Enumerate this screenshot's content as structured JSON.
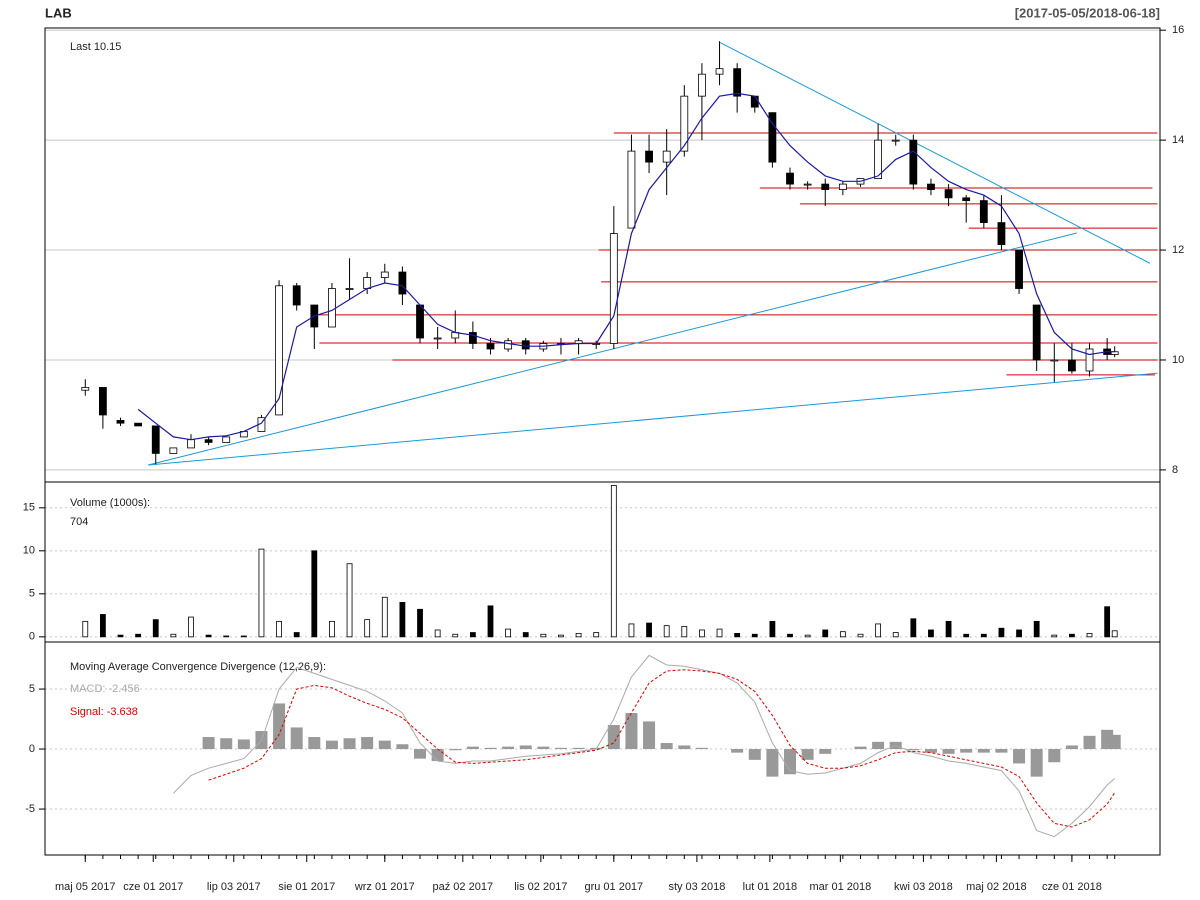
{
  "chart_data": [
    {
      "type": "candlestick",
      "title": "LAB",
      "subtitle": "[2017-05-05/2018-06-18]",
      "annotation": "Last 10.15",
      "x": [
        "2017-05-05",
        "2017-05-12",
        "2017-05-19",
        "2017-05-26",
        "2017-06-02",
        "2017-06-09",
        "2017-06-16",
        "2017-06-23",
        "2017-06-30",
        "2017-07-07",
        "2017-07-14",
        "2017-07-21",
        "2017-07-28",
        "2017-08-04",
        "2017-08-11",
        "2017-08-18",
        "2017-08-25",
        "2017-09-01",
        "2017-09-08",
        "2017-09-15",
        "2017-09-22",
        "2017-09-29",
        "2017-10-06",
        "2017-10-13",
        "2017-10-20",
        "2017-10-27",
        "2017-11-03",
        "2017-11-10",
        "2017-11-17",
        "2017-11-24",
        "2017-12-01",
        "2017-12-08",
        "2017-12-15",
        "2017-12-22",
        "2017-12-29",
        "2018-01-05",
        "2018-01-12",
        "2018-01-19",
        "2018-01-26",
        "2018-02-02",
        "2018-02-09",
        "2018-02-16",
        "2018-02-23",
        "2018-03-02",
        "2018-03-09",
        "2018-03-16",
        "2018-03-23",
        "2018-03-30",
        "2018-04-06",
        "2018-04-13",
        "2018-04-20",
        "2018-04-27",
        "2018-05-04",
        "2018-05-11",
        "2018-05-18",
        "2018-05-25",
        "2018-06-01",
        "2018-06-08",
        "2018-06-15",
        "2018-06-18"
      ],
      "open": [
        9.45,
        9.5,
        8.9,
        8.85,
        8.8,
        8.3,
        8.4,
        8.55,
        8.5,
        8.6,
        8.7,
        9.0,
        11.35,
        11.0,
        10.6,
        11.3,
        11.3,
        11.5,
        11.6,
        11.0,
        10.4,
        10.4,
        10.5,
        10.3,
        10.2,
        10.35,
        10.2,
        10.3,
        10.3,
        10.3,
        10.3,
        12.4,
        13.8,
        13.6,
        13.8,
        14.8,
        15.2,
        15.3,
        14.8,
        14.5,
        13.4,
        13.2,
        13.2,
        13.1,
        13.2,
        13.3,
        14.0,
        14.0,
        13.2,
        13.1,
        12.95,
        12.9,
        12.5,
        12.0,
        11.0,
        10.0,
        10.0,
        9.8,
        10.2,
        10.1
      ],
      "high": [
        9.65,
        9.5,
        8.95,
        8.85,
        8.8,
        8.4,
        8.65,
        8.6,
        8.6,
        8.7,
        9.0,
        11.45,
        11.4,
        11.0,
        11.4,
        11.85,
        11.6,
        11.75,
        11.7,
        11.0,
        10.6,
        10.9,
        10.7,
        10.4,
        10.4,
        10.4,
        10.35,
        10.4,
        10.4,
        10.35,
        12.8,
        14.1,
        14.1,
        14.2,
        15.0,
        15.4,
        15.8,
        15.4,
        14.8,
        14.5,
        13.5,
        13.25,
        13.3,
        13.25,
        13.3,
        14.3,
        14.1,
        14.1,
        13.3,
        13.2,
        13.0,
        13.0,
        13.0,
        12.0,
        11.0,
        10.3,
        10.3,
        10.3,
        10.4,
        10.25
      ],
      "low": [
        9.35,
        8.75,
        8.8,
        8.8,
        8.1,
        8.3,
        8.4,
        8.45,
        8.5,
        8.6,
        8.7,
        9.0,
        10.9,
        10.2,
        10.6,
        11.1,
        11.2,
        11.4,
        11.0,
        10.3,
        10.2,
        10.3,
        10.2,
        10.1,
        10.15,
        10.1,
        10.15,
        10.1,
        10.1,
        10.2,
        10.2,
        12.4,
        13.4,
        13.0,
        13.7,
        14.0,
        15.0,
        14.5,
        14.5,
        13.5,
        13.1,
        13.1,
        12.8,
        13.0,
        13.15,
        13.3,
        13.9,
        13.1,
        13.0,
        12.8,
        12.5,
        12.4,
        12.0,
        11.2,
        9.8,
        9.6,
        9.75,
        9.7,
        10.0,
        10.05
      ],
      "close": [
        9.5,
        9.0,
        8.85,
        8.8,
        8.3,
        8.4,
        8.55,
        8.5,
        8.6,
        8.7,
        8.95,
        11.35,
        11.0,
        10.6,
        11.3,
        11.3,
        11.5,
        11.6,
        11.2,
        10.4,
        10.4,
        10.5,
        10.3,
        10.2,
        10.35,
        10.2,
        10.3,
        10.3,
        10.35,
        10.3,
        12.3,
        13.8,
        13.6,
        13.8,
        14.8,
        15.2,
        15.3,
        14.8,
        14.6,
        13.6,
        13.2,
        13.2,
        13.1,
        13.2,
        13.3,
        14.0,
        14.0,
        13.2,
        13.1,
        12.95,
        12.9,
        12.5,
        12.1,
        11.3,
        10.0,
        10.0,
        9.8,
        10.2,
        10.1,
        10.15
      ],
      "up_color": "#ffffff",
      "down_color": "#000000",
      "ma": {
        "color": "#1a1aa6",
        "values": [
          null,
          null,
          null,
          9.1,
          8.85,
          8.6,
          8.55,
          8.6,
          8.62,
          8.7,
          8.85,
          9.3,
          10.6,
          10.8,
          10.9,
          11.1,
          11.3,
          11.4,
          11.35,
          11.0,
          10.65,
          10.5,
          10.45,
          10.35,
          10.3,
          10.25,
          10.25,
          10.28,
          10.3,
          10.3,
          10.8,
          12.3,
          13.1,
          13.5,
          13.9,
          14.4,
          14.8,
          14.85,
          14.8,
          14.3,
          13.9,
          13.6,
          13.35,
          13.25,
          13.25,
          13.35,
          13.65,
          13.8,
          13.5,
          13.25,
          13.1,
          13.0,
          12.8,
          12.3,
          11.2,
          10.5,
          10.2,
          10.1,
          10.15,
          10.15
        ]
      },
      "hline_color": "#cc0000",
      "hlines": [
        {
          "y": 14.13,
          "x": [
            "2017-12-01",
            "2018-07-05"
          ]
        },
        {
          "y": 13.13,
          "x": [
            "2018-01-28",
            "2018-07-03"
          ]
        },
        {
          "y": 12.84,
          "x": [
            "2018-02-13",
            "2018-07-05"
          ]
        },
        {
          "y": 12.4,
          "x": [
            "2018-04-21",
            "2018-07-05"
          ]
        },
        {
          "y": 12.0,
          "x": [
            "2017-11-25",
            "2018-07-05"
          ]
        },
        {
          "y": 11.42,
          "x": [
            "2017-11-26",
            "2018-07-05"
          ]
        },
        {
          "y": 10.82,
          "x": [
            "2017-08-06",
            "2018-07-05"
          ]
        },
        {
          "y": 10.31,
          "x": [
            "2017-08-06",
            "2018-07-05"
          ]
        },
        {
          "y": 10.0,
          "x": [
            "2017-09-04",
            "2018-07-05"
          ]
        },
        {
          "y": 9.73,
          "x": [
            "2018-05-06",
            "2018-07-04"
          ]
        }
      ],
      "trend_color": "#1a9bd7",
      "trendlines": [
        {
          "x": [
            "2017-05-30",
            "2018-07-05"
          ],
          "y": [
            8.09,
            9.76
          ]
        },
        {
          "x": [
            "2017-05-30",
            "2018-06-03"
          ],
          "y": [
            8.09,
            12.31
          ]
        },
        {
          "x": [
            "2018-01-12",
            "2018-07-02"
          ],
          "y": [
            15.78,
            11.76
          ]
        }
      ],
      "ylim": [
        7.78,
        16.04
      ],
      "yticks": [
        8,
        10,
        12,
        14,
        16
      ],
      "grid": true,
      "xlim": [
        "2017-04-19",
        "2018-07-06"
      ],
      "xticks": [
        {
          "value": "2017-05-05",
          "label": "maj 05 2017"
        },
        {
          "value": "2017-06-01",
          "label": "cze 01 2017"
        },
        {
          "value": "2017-07-03",
          "label": "lip 03 2017"
        },
        {
          "value": "2017-08-01",
          "label": "sie 01 2017"
        },
        {
          "value": "2017-09-01",
          "label": "wrz 01 2017"
        },
        {
          "value": "2017-10-02",
          "label": "paź 02 2017"
        },
        {
          "value": "2017-11-02",
          "label": "lis 02 2017"
        },
        {
          "value": "2017-12-01",
          "label": "gru 01 2017"
        },
        {
          "value": "2018-01-03",
          "label": "sty 03 2018"
        },
        {
          "value": "2018-02-01",
          "label": "lut 01 2018"
        },
        {
          "value": "2018-03-01",
          "label": "mar 01 2018"
        },
        {
          "value": "2018-04-03",
          "label": "kwi 03 2018"
        },
        {
          "value": "2018-05-02",
          "label": "maj 02 2018"
        },
        {
          "value": "2018-06-01",
          "label": "cze 01 2018"
        }
      ]
    },
    {
      "type": "bar",
      "title": "Volume (1000s):",
      "annotation": "704",
      "values": [
        1.8,
        2.6,
        0.2,
        0.3,
        2.0,
        0.3,
        2.3,
        0.2,
        0.1,
        0.1,
        10.2,
        1.8,
        0.5,
        10.0,
        1.8,
        8.5,
        2.0,
        4.6,
        4.0,
        3.2,
        0.8,
        0.3,
        0.5,
        3.6,
        0.9,
        0.5,
        0.3,
        0.2,
        0.4,
        0.5,
        17.6,
        1.5,
        1.6,
        1.3,
        1.2,
        0.8,
        0.9,
        0.4,
        0.3,
        1.8,
        0.3,
        0.2,
        0.8,
        0.6,
        0.3,
        1.5,
        0.5,
        2.1,
        0.8,
        1.8,
        0.3,
        0.3,
        1.0,
        0.8,
        1.8,
        0.2,
        0.3,
        0.4,
        3.5,
        0.704
      ],
      "ylim": [
        -0.6,
        18.0
      ],
      "yticks": [
        0,
        5,
        10,
        15
      ],
      "grid": true
    },
    {
      "type": "macd",
      "title": "Moving Average Convergence Divergence (12,26,9):",
      "series": [
        {
          "name": "MACD: -2.456",
          "color": "#aaaaaa",
          "dashed": false,
          "values": [
            null,
            null,
            null,
            null,
            null,
            -3.7,
            -2.2,
            -1.6,
            -1.2,
            -0.8,
            0.7,
            5.0,
            6.8,
            6.3,
            5.8,
            5.3,
            4.8,
            4.0,
            3.0,
            0.5,
            -1.0,
            -1.2,
            -1.0,
            -1.0,
            -0.8,
            -0.6,
            -0.5,
            -0.4,
            -0.2,
            0.0,
            2.5,
            6.0,
            7.8,
            7.0,
            6.9,
            6.6,
            6.3,
            5.5,
            3.9,
            0.5,
            -1.8,
            -2.1,
            -2.0,
            -1.6,
            -1.2,
            -0.3,
            0.3,
            -0.3,
            -0.6,
            -1.0,
            -1.2,
            -1.5,
            -1.8,
            -3.5,
            -6.8,
            -7.3,
            -6.2,
            -4.8,
            -3.0,
            -2.456
          ]
        },
        {
          "name": "Signal: -3.638",
          "color": "#dd0000",
          "dashed": true,
          "values": [
            null,
            null,
            null,
            null,
            null,
            null,
            null,
            -2.6,
            -2.1,
            -1.6,
            -0.8,
            1.2,
            5.0,
            5.3,
            5.1,
            4.4,
            3.8,
            3.3,
            2.6,
            1.3,
            0.0,
            -1.1,
            -1.2,
            -1.1,
            -1.0,
            -0.9,
            -0.7,
            -0.5,
            -0.3,
            -0.1,
            0.5,
            3.0,
            5.5,
            6.5,
            6.6,
            6.5,
            6.3,
            5.8,
            4.8,
            2.8,
            0.3,
            -1.2,
            -1.6,
            -1.6,
            -1.4,
            -0.9,
            -0.3,
            -0.2,
            -0.3,
            -0.6,
            -0.9,
            -1.2,
            -1.5,
            -2.3,
            -4.5,
            -6.2,
            -6.5,
            -5.9,
            -4.6,
            -3.638
          ]
        }
      ],
      "histogram_color": "#999999",
      "ylim": [
        -8.83,
        8.92
      ],
      "yticks": [
        -5,
        0,
        5
      ],
      "grid": true
    }
  ]
}
